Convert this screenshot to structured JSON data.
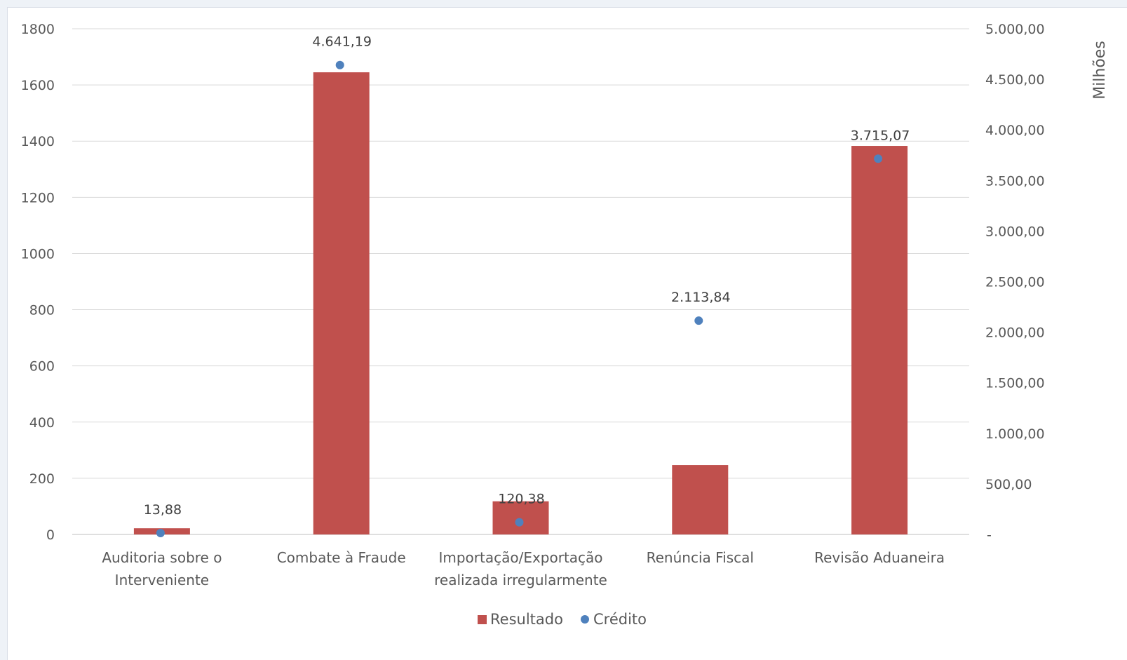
{
  "chart_data": {
    "type": "bar",
    "categories": [
      [
        "Auditoria sobre o",
        "Interveniente"
      ],
      [
        "Combate à Fraude"
      ],
      [
        "Importação/Exportação",
        "realizada irregularmente"
      ],
      [
        "Renúncia Fiscal"
      ],
      [
        "Revisão Aduaneira"
      ]
    ],
    "series": [
      {
        "name": "Resultado",
        "type": "bar",
        "axis": "left",
        "color": "#c0504d",
        "values": [
          22,
          1645,
          118,
          247,
          1383
        ]
      },
      {
        "name": "Crédito",
        "type": "scatter",
        "axis": "right",
        "color": "#4f81bd",
        "values": [
          13.88,
          4641.19,
          120.38,
          2113.84,
          3715.07
        ],
        "labels": [
          "13,88",
          "4.641,19",
          "120,38",
          "2.113,84",
          "3.715,07"
        ]
      }
    ],
    "ylim_left": [
      0,
      1800
    ],
    "yticks_left": [
      "1800",
      "1600",
      "1400",
      "1200",
      "1000",
      "800",
      "600",
      "400",
      "200",
      "0"
    ],
    "ylim_right": [
      0,
      5000
    ],
    "yticks_right": [
      "5.000,00",
      "4.500,00",
      "4.000,00",
      "3.500,00",
      "3.000,00",
      "2.500,00",
      "2.000,00",
      "1.500,00",
      "1.000,00",
      "500,00",
      "-"
    ],
    "y2label": "Milhões",
    "grid": true,
    "legend": "bottom-center"
  }
}
